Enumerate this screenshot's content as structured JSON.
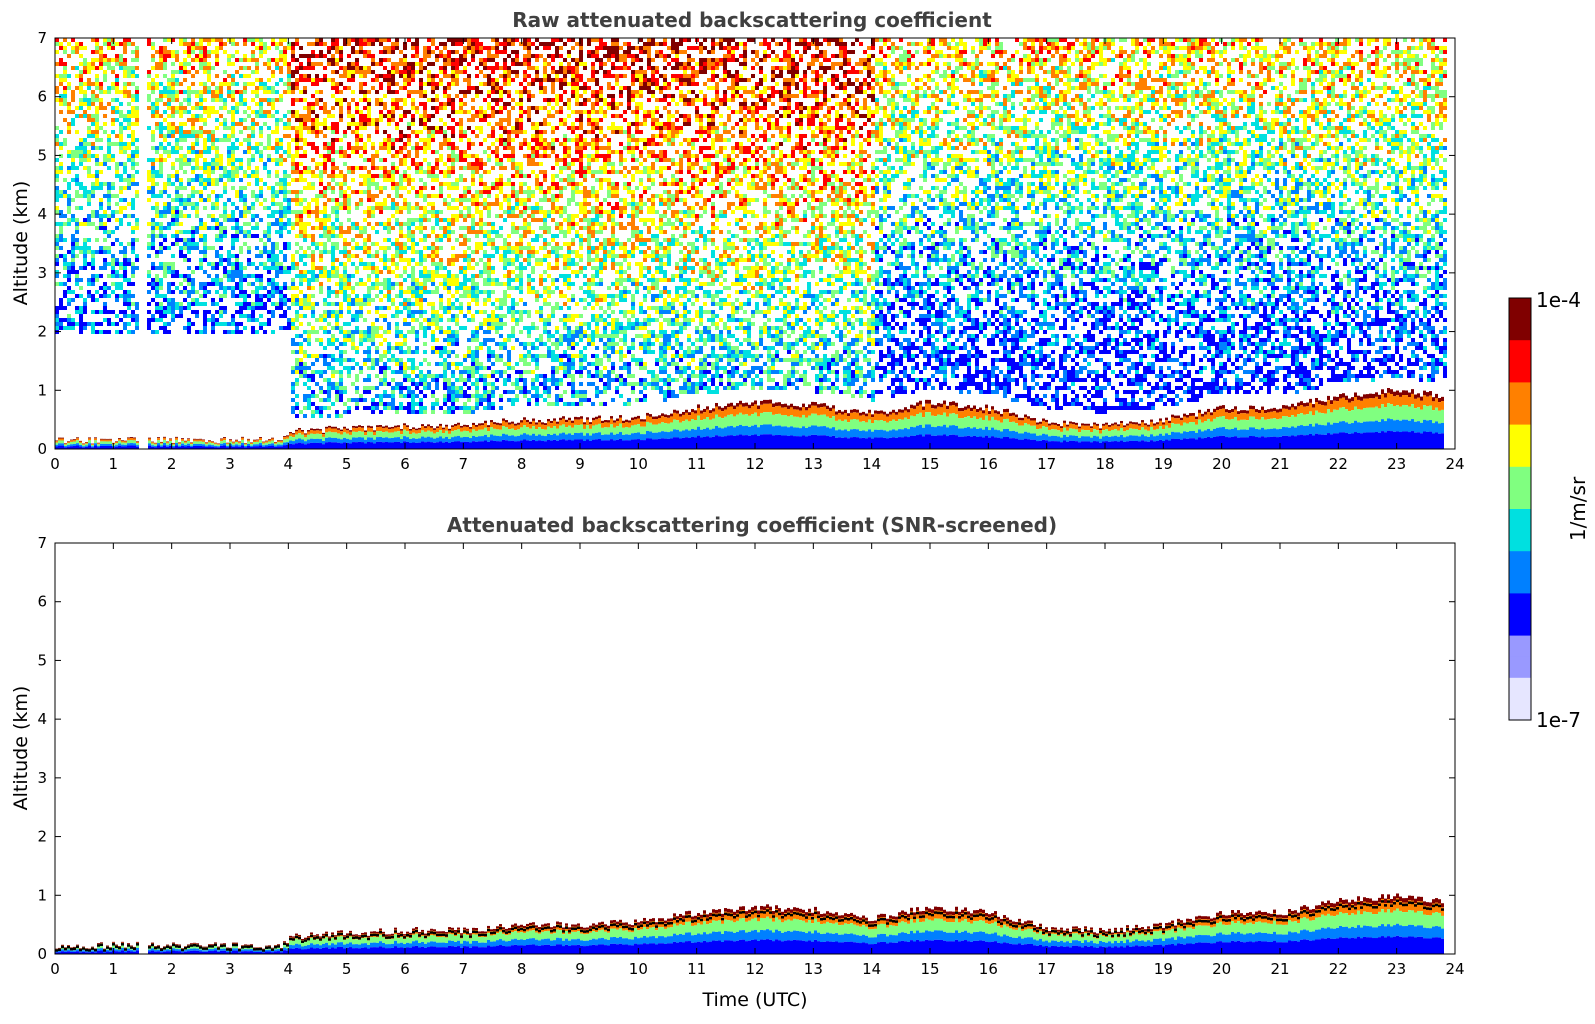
{
  "chart_data": [
    {
      "type": "heatmap",
      "title": "Raw attenuated backscattering coefficient",
      "xlabel": "",
      "ylabel": "Altitude (km)",
      "xlim": [
        0,
        24
      ],
      "ylim": [
        0,
        7
      ],
      "x_ticks": [
        "0",
        "1",
        "2",
        "3",
        "4",
        "5",
        "6",
        "7",
        "8",
        "9",
        "10",
        "11",
        "12",
        "13",
        "14",
        "15",
        "16",
        "17",
        "18",
        "19",
        "20",
        "21",
        "22",
        "23",
        "24"
      ],
      "y_ticks": [
        "0",
        "1",
        "2",
        "3",
        "4",
        "5",
        "6",
        "7"
      ],
      "x_tick_values": [
        0,
        1,
        2,
        3,
        4,
        5,
        6,
        7,
        8,
        9,
        10,
        11,
        12,
        13,
        14,
        15,
        16,
        17,
        18,
        19,
        20,
        21,
        22,
        23,
        24
      ],
      "y_tick_values": [
        0,
        1,
        2,
        3,
        4,
        5,
        6,
        7
      ],
      "data_end_time": 23.8,
      "missing_intervals": [
        [
          1.42,
          1.55
        ]
      ],
      "noise": "high",
      "layer_top_km": {
        "x": [
          0,
          1,
          2,
          3,
          3.9,
          4,
          5,
          6,
          7,
          8,
          9,
          10,
          11,
          12,
          13,
          14,
          15,
          16,
          17,
          18,
          19,
          20,
          21,
          22,
          23,
          23.8
        ],
        "y": [
          0.15,
          0.15,
          0.15,
          0.15,
          0.15,
          0.3,
          0.35,
          0.4,
          0.4,
          0.5,
          0.5,
          0.55,
          0.7,
          0.8,
          0.75,
          0.6,
          0.8,
          0.7,
          0.45,
          0.4,
          0.5,
          0.7,
          0.7,
          0.9,
          1.0,
          0.9
        ]
      }
    },
    {
      "type": "heatmap",
      "title": "Attenuated backscattering coefficient (SNR-screened)",
      "xlabel": "Time (UTC)",
      "ylabel": "Altitude (km)",
      "xlim": [
        0,
        24
      ],
      "ylim": [
        0,
        7
      ],
      "x_ticks": [
        "0",
        "1",
        "2",
        "3",
        "4",
        "5",
        "6",
        "7",
        "8",
        "9",
        "10",
        "11",
        "12",
        "13",
        "14",
        "15",
        "16",
        "17",
        "18",
        "19",
        "20",
        "21",
        "22",
        "23",
        "24"
      ],
      "y_ticks": [
        "0",
        "1",
        "2",
        "3",
        "4",
        "5",
        "6",
        "7"
      ],
      "x_tick_values": [
        0,
        1,
        2,
        3,
        4,
        5,
        6,
        7,
        8,
        9,
        10,
        11,
        12,
        13,
        14,
        15,
        16,
        17,
        18,
        19,
        20,
        21,
        22,
        23,
        24
      ],
      "y_tick_values": [
        0,
        1,
        2,
        3,
        4,
        5,
        6,
        7
      ],
      "data_end_time": 23.8,
      "missing_intervals": [
        [
          1.42,
          1.55
        ]
      ],
      "noise": "screened",
      "layer_top_km": {
        "x": [
          0,
          1,
          2,
          3,
          3.9,
          4,
          5,
          6,
          7,
          8,
          9,
          10,
          11,
          12,
          13,
          14,
          15,
          16,
          17,
          18,
          19,
          20,
          21,
          22,
          23,
          23.8
        ],
        "y": [
          0.15,
          0.15,
          0.15,
          0.15,
          0.15,
          0.3,
          0.35,
          0.4,
          0.4,
          0.5,
          0.5,
          0.55,
          0.7,
          0.8,
          0.75,
          0.6,
          0.8,
          0.7,
          0.45,
          0.4,
          0.5,
          0.7,
          0.7,
          0.9,
          1.0,
          0.9
        ]
      }
    }
  ],
  "colorbar": {
    "label": "1/m/sr",
    "max_label": "1e-4",
    "min_label": "1e-7",
    "scale": "log",
    "range": [
      1e-07,
      0.0001
    ],
    "colormap": "jet",
    "colors": [
      "#e6e6ff",
      "#9999ff",
      "#0000ff",
      "#0080ff",
      "#00e0e0",
      "#80ff80",
      "#ffff00",
      "#ff8000",
      "#ff0000",
      "#800000"
    ]
  }
}
